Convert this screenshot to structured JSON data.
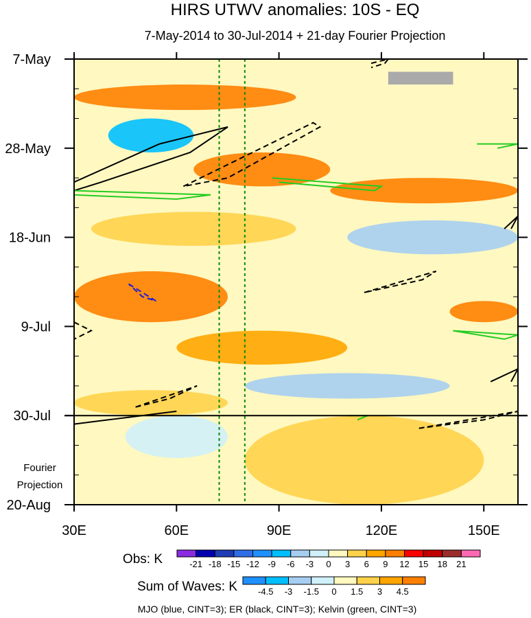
{
  "chart_data": {
    "type": "heatmap",
    "title": "HIRS UTWV anomalies: 10S - EQ",
    "subtitle": "7-May-2014 to 30-Jul-2014 + 21-day Fourier Projection",
    "x_ticks": [
      {
        "value": 30,
        "label": "30E"
      },
      {
        "value": 60,
        "label": "60E"
      },
      {
        "value": 90,
        "label": "90E"
      },
      {
        "value": 120,
        "label": "120E"
      },
      {
        "value": 150,
        "label": "150E"
      }
    ],
    "xlim": [
      30,
      160
    ],
    "y_ticks": [
      {
        "day": 0,
        "label": "7-May"
      },
      {
        "day": 21,
        "label": "28-May"
      },
      {
        "day": 42,
        "label": "18-Jun"
      },
      {
        "day": 63,
        "label": "9-Jul"
      },
      {
        "day": 84,
        "label": "30-Jul"
      },
      {
        "day": 105,
        "label": "20-Aug"
      }
    ],
    "ylim_days": [
      0,
      105
    ],
    "projection_start_day": 84,
    "projection_label": [
      "Fourier",
      "Projection"
    ],
    "reference_longitudes": [
      72.5,
      80
    ],
    "obs_colorbar": {
      "label": "Obs: K",
      "levels": [
        "-21",
        "-18",
        "-15",
        "-12",
        "-9",
        "-6",
        "-3",
        "0",
        "3",
        "6",
        "9",
        "12",
        "15",
        "18",
        "21"
      ],
      "colors": [
        "#8a2be2",
        "#0000b0",
        "#1e3cb4",
        "#2f6ee6",
        "#1e90ff",
        "#00bfff",
        "#a6cef2",
        "#d0f0fa",
        "#fff8c0",
        "#ffd24a",
        "#ffa500",
        "#ff7f00",
        "#ff0000",
        "#c00000",
        "#9b2d2d",
        "#ff69b4"
      ]
    },
    "waves_colorbar": {
      "label": "Sum of Waves: K",
      "levels": [
        "-4.5",
        "-3",
        "-1.5",
        "0",
        "1.5",
        "3",
        "4.5"
      ],
      "colors": [
        "#1e90ff",
        "#00bfff",
        "#a6cef2",
        "#d0f0fa",
        "#fff8c0",
        "#ffd24a",
        "#ffa500",
        "#ff7f00"
      ]
    },
    "footnote": "MJO (blue, CINT=3); ER (black, CINT=3); Kelvin (green, CINT=3)",
    "wave_colors": {
      "MJO": "#1a1ad4",
      "ER": "#000000",
      "Kelvin": "#22cc22"
    },
    "anomaly_bands": [
      {
        "day_start": 0,
        "day_end": 2,
        "lon_start": 30,
        "lon_end": 160,
        "level": 0
      },
      {
        "day_start": 6,
        "day_end": 12,
        "lon_start": 30,
        "lon_end": 95,
        "level": 4.5
      },
      {
        "day_start": 14,
        "day_end": 22,
        "lon_start": 40,
        "lon_end": 65,
        "level": -4.5
      },
      {
        "day_start": 22,
        "day_end": 30,
        "lon_start": 65,
        "lon_end": 105,
        "level": 4.5
      },
      {
        "day_start": 28,
        "day_end": 34,
        "lon_start": 105,
        "lon_end": 160,
        "level": 4.5
      },
      {
        "day_start": 36,
        "day_end": 44,
        "lon_start": 35,
        "lon_end": 95,
        "level": 1.5
      },
      {
        "day_start": 38,
        "day_end": 46,
        "lon_start": 110,
        "lon_end": 160,
        "level": -3
      },
      {
        "day_start": 50,
        "day_end": 62,
        "lon_start": 30,
        "lon_end": 75,
        "level": 4.5
      },
      {
        "day_start": 57,
        "day_end": 62,
        "lon_start": 140,
        "lon_end": 160,
        "level": 9
      },
      {
        "day_start": 64,
        "day_end": 72,
        "lon_start": 60,
        "lon_end": 110,
        "level": 3
      },
      {
        "day_start": 74,
        "day_end": 80,
        "lon_start": 80,
        "lon_end": 140,
        "level": -3
      },
      {
        "day_start": 78,
        "day_end": 84,
        "lon_start": 30,
        "lon_end": 75,
        "level": 1.5
      },
      {
        "day_start": 84,
        "day_end": 94,
        "lon_start": 45,
        "lon_end": 75,
        "level": -1.5
      },
      {
        "day_start": 84,
        "day_end": 105,
        "lon_start": 80,
        "lon_end": 150,
        "level": 1.5
      }
    ],
    "missing_regions": [
      {
        "day_start": 3,
        "day_end": 6,
        "lon_start": 122,
        "lon_end": 141
      }
    ],
    "wave_contours": [
      {
        "wave": "ER",
        "sign": "positive",
        "lon": [
          30,
          55,
          75,
          64,
          38,
          30
        ],
        "day": [
          29,
          20,
          16,
          22,
          29,
          31
        ]
      },
      {
        "wave": "ER",
        "sign": "negative",
        "lon": [
          62,
          100,
          102,
          75,
          62
        ],
        "day": [
          30,
          15,
          16,
          28,
          30
        ]
      },
      {
        "wave": "ER",
        "sign": "negative",
        "lon": [
          115,
          136,
          132,
          115
        ],
        "day": [
          55,
          50,
          52,
          55
        ]
      },
      {
        "wave": "ER",
        "sign": "negative",
        "lon": [
          30,
          35,
          30
        ],
        "day": [
          62,
          64,
          66
        ]
      },
      {
        "wave": "ER",
        "sign": "negative",
        "lon": [
          48,
          66,
          58,
          48
        ],
        "day": [
          82,
          77,
          80,
          82
        ]
      },
      {
        "wave": "ER",
        "sign": "negative",
        "lon": [
          30,
          60,
          50,
          30
        ],
        "day": [
          86,
          83,
          84,
          86
        ]
      },
      {
        "wave": "ER",
        "sign": "negative",
        "lon": [
          131,
          160,
          150,
          131
        ],
        "day": [
          87,
          83,
          85,
          87
        ]
      },
      {
        "wave": "ER",
        "sign": "positive",
        "lon": [
          152,
          160,
          158
        ],
        "day": [
          76,
          73,
          76
        ]
      },
      {
        "wave": "ER",
        "sign": "positive",
        "lon": [
          156,
          160,
          158
        ],
        "day": [
          40,
          37,
          40
        ]
      },
      {
        "wave": "ER",
        "sign": "negative",
        "lon": [
          117,
          122,
          121,
          117
        ],
        "day": [
          1,
          0,
          1,
          2
        ]
      },
      {
        "wave": "MJO",
        "sign": "negative",
        "lon": [
          46,
          54,
          50,
          46
        ],
        "day": [
          53,
          57,
          56,
          53
        ]
      },
      {
        "wave": "Kelvin",
        "sign": "positive",
        "lon": [
          30,
          70,
          60,
          30
        ],
        "day": [
          31,
          32,
          33,
          32
        ]
      },
      {
        "wave": "Kelvin",
        "sign": "positive",
        "lon": [
          88,
          120,
          118,
          90
        ],
        "day": [
          28,
          30,
          31,
          29
        ]
      },
      {
        "wave": "Kelvin",
        "sign": "positive",
        "lon": [
          141,
          160,
          156,
          141
        ],
        "day": [
          64,
          65,
          66,
          64
        ]
      },
      {
        "wave": "Kelvin",
        "sign": "positive",
        "lon": [
          110,
          116,
          113
        ],
        "day": [
          84,
          84,
          85
        ]
      },
      {
        "wave": "Kelvin",
        "sign": "positive",
        "lon": [
          148,
          160,
          154
        ],
        "day": [
          20,
          20,
          21
        ]
      }
    ]
  }
}
